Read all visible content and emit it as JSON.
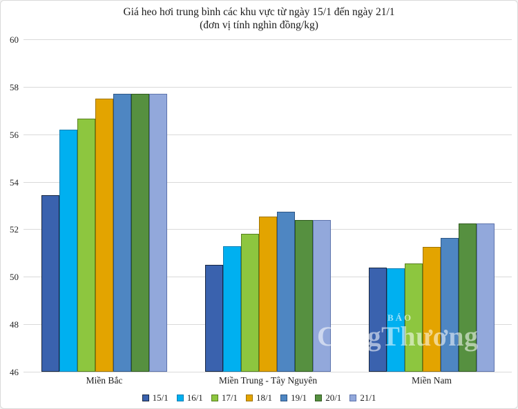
{
  "page": {
    "background": "#ffffff",
    "frame_border_color": "#d9d9d9"
  },
  "title": {
    "line1": "Giá heo hơi trung bình các khu vực từ ngày 15/1 đến ngày 21/1",
    "line2": "(đơn vị tính nghìn đồng/kg)"
  },
  "watermark": {
    "small": "BÁO",
    "large": "CôngThương"
  },
  "chart_data": {
    "type": "bar",
    "title": "Giá heo hơi trung bình các khu vực từ ngày 15/1 đến ngày 21/1",
    "subtitle": "(đơn vị tính nghìn đồng/kg)",
    "unit": "nghìn đồng/kg",
    "categories": [
      "Miền Bắc",
      "Miền Trung - Tây Nguyên",
      "Miền Nam"
    ],
    "series": [
      {
        "name": "15/1",
        "color": "#3A62AE",
        "border_color": "#16253F",
        "values": [
          53.45,
          50.5,
          50.4
        ]
      },
      {
        "name": "16/1",
        "color": "#00B0F0",
        "border_color": "#0C7DB3",
        "values": [
          56.2,
          51.3,
          50.35
        ]
      },
      {
        "name": "17/1",
        "color": "#8DC63F",
        "border_color": "#567F1D",
        "values": [
          56.65,
          51.8,
          50.55
        ]
      },
      {
        "name": "18/1",
        "color": "#E3A400",
        "border_color": "#9E7300",
        "values": [
          57.5,
          52.55,
          51.25
        ]
      },
      {
        "name": "19/1",
        "color": "#4E86C2",
        "border_color": "#2C5584",
        "values": [
          57.7,
          52.75,
          51.65
        ]
      },
      {
        "name": "20/1",
        "color": "#569040",
        "border_color": "#2F5A1E",
        "values": [
          57.7,
          52.4,
          52.25
        ]
      },
      {
        "name": "21/1",
        "color": "#92A8DB",
        "border_color": "#5D73AC",
        "values": [
          57.7,
          52.4,
          52.25
        ]
      }
    ],
    "ylim": [
      46,
      60
    ],
    "yticks": [
      46,
      48,
      50,
      52,
      54,
      56,
      58,
      60
    ],
    "grid": true,
    "gridline_color": "#D9D9D9",
    "legend_position": "bottom"
  }
}
